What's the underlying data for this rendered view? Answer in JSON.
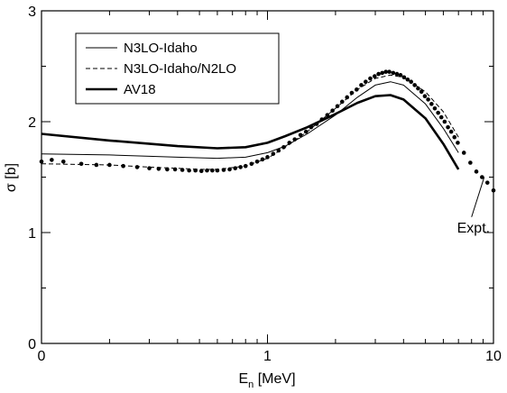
{
  "chart_data": {
    "type": "line",
    "x_scale": "log",
    "ylabel": "σ [b]",
    "xlabel_main": "E",
    "xlabel_sub": "n",
    "xlabel_unit": " [MeV]",
    "x_tick_labels": [
      "0",
      "1",
      "10"
    ],
    "x_tick_values": [
      0.1,
      1,
      10
    ],
    "y_tick_labels": [
      "0",
      "1",
      "2",
      "3"
    ],
    "y_tick_values": [
      0,
      1,
      2,
      3
    ],
    "xlim": [
      0.1,
      10
    ],
    "ylim": [
      0,
      3
    ],
    "grid": false,
    "legend_position": "top-left",
    "series": [
      {
        "name": "N3LO-Idaho",
        "style": "thin-solid",
        "x": [
          0.1,
          0.2,
          0.4,
          0.6,
          0.8,
          1.0,
          1.2,
          1.5,
          2.0,
          2.5,
          3.0,
          3.5,
          4.0,
          5.0,
          6.0,
          7.0
        ],
        "y": [
          1.71,
          1.7,
          1.68,
          1.67,
          1.68,
          1.72,
          1.78,
          1.89,
          2.06,
          2.22,
          2.33,
          2.36,
          2.33,
          2.16,
          1.94,
          1.72
        ]
      },
      {
        "name": "N3LO-Idaho/N2LO",
        "style": "dashed",
        "x": [
          0.1,
          0.2,
          0.3,
          0.4,
          0.5,
          0.6,
          0.8,
          1.0,
          1.2,
          1.5,
          2.0,
          2.5,
          3.0,
          3.5,
          4.0,
          5.0,
          6.0,
          7.0
        ],
        "y": [
          1.62,
          1.61,
          1.59,
          1.58,
          1.57,
          1.57,
          1.6,
          1.67,
          1.77,
          1.91,
          2.12,
          2.29,
          2.39,
          2.42,
          2.4,
          2.27,
          2.09,
          1.86
        ]
      },
      {
        "name": "AV18",
        "style": "thick-solid",
        "x": [
          0.1,
          0.2,
          0.4,
          0.6,
          0.8,
          1.0,
          1.2,
          1.5,
          2.0,
          2.5,
          3.0,
          3.5,
          4.0,
          5.0,
          6.0,
          7.0
        ],
        "y": [
          1.89,
          1.83,
          1.78,
          1.76,
          1.77,
          1.81,
          1.87,
          1.95,
          2.07,
          2.17,
          2.23,
          2.24,
          2.2,
          2.03,
          1.8,
          1.57
        ]
      }
    ],
    "experimental": {
      "label": "Expt.",
      "points": [
        [
          0.1,
          1.64
        ],
        [
          0.111,
          1.655
        ],
        [
          0.125,
          1.64
        ],
        [
          0.15,
          1.62
        ],
        [
          0.175,
          1.61
        ],
        [
          0.2,
          1.61
        ],
        [
          0.23,
          1.6
        ],
        [
          0.265,
          1.59
        ],
        [
          0.3,
          1.58
        ],
        [
          0.33,
          1.575
        ],
        [
          0.36,
          1.57
        ],
        [
          0.39,
          1.57
        ],
        [
          0.42,
          1.565
        ],
        [
          0.45,
          1.56
        ],
        [
          0.48,
          1.56
        ],
        [
          0.51,
          1.555
        ],
        [
          0.54,
          1.56
        ],
        [
          0.57,
          1.56
        ],
        [
          0.6,
          1.56
        ],
        [
          0.64,
          1.565
        ],
        [
          0.68,
          1.57
        ],
        [
          0.72,
          1.58
        ],
        [
          0.76,
          1.59
        ],
        [
          0.8,
          1.6
        ],
        [
          0.85,
          1.62
        ],
        [
          0.9,
          1.64
        ],
        [
          0.95,
          1.66
        ],
        [
          1.0,
          1.68
        ],
        [
          1.06,
          1.71
        ],
        [
          1.12,
          1.74
        ],
        [
          1.18,
          1.77
        ],
        [
          1.25,
          1.81
        ],
        [
          1.32,
          1.84
        ],
        [
          1.4,
          1.88
        ],
        [
          1.48,
          1.91
        ],
        [
          1.56,
          1.95
        ],
        [
          1.65,
          1.98
        ],
        [
          1.74,
          2.02
        ],
        [
          1.84,
          2.06
        ],
        [
          1.94,
          2.1
        ],
        [
          2.04,
          2.14
        ],
        [
          2.14,
          2.18
        ],
        [
          2.25,
          2.22
        ],
        [
          2.36,
          2.26
        ],
        [
          2.48,
          2.29
        ],
        [
          2.6,
          2.33
        ],
        [
          2.72,
          2.36
        ],
        [
          2.85,
          2.39
        ],
        [
          2.98,
          2.41
        ],
        [
          3.1,
          2.43
        ],
        [
          3.22,
          2.44
        ],
        [
          3.34,
          2.45
        ],
        [
          3.46,
          2.45
        ],
        [
          3.6,
          2.44
        ],
        [
          3.74,
          2.43
        ],
        [
          3.88,
          2.42
        ],
        [
          4.02,
          2.4
        ],
        [
          4.17,
          2.38
        ],
        [
          4.32,
          2.36
        ],
        [
          4.48,
          2.33
        ],
        [
          4.64,
          2.3
        ],
        [
          4.8,
          2.27
        ],
        [
          4.97,
          2.23
        ],
        [
          5.14,
          2.2
        ],
        [
          5.32,
          2.16
        ],
        [
          5.5,
          2.12
        ],
        [
          5.69,
          2.08
        ],
        [
          5.88,
          2.04
        ],
        [
          6.08,
          2.0
        ],
        [
          6.29,
          1.95
        ],
        [
          6.5,
          1.91
        ],
        [
          6.72,
          1.86
        ],
        [
          6.95,
          1.81
        ],
        [
          7.4,
          1.72
        ],
        [
          7.9,
          1.63
        ],
        [
          8.4,
          1.55
        ],
        [
          8.9,
          1.5
        ],
        [
          9.4,
          1.45
        ],
        [
          10.0,
          1.38
        ]
      ]
    },
    "annotation": {
      "text": "Expt.",
      "arrow_from": [
        8.0,
        1.14
      ],
      "arrow_to": [
        9.1,
        1.5
      ],
      "text_at": [
        6.9,
        1.0
      ]
    }
  }
}
